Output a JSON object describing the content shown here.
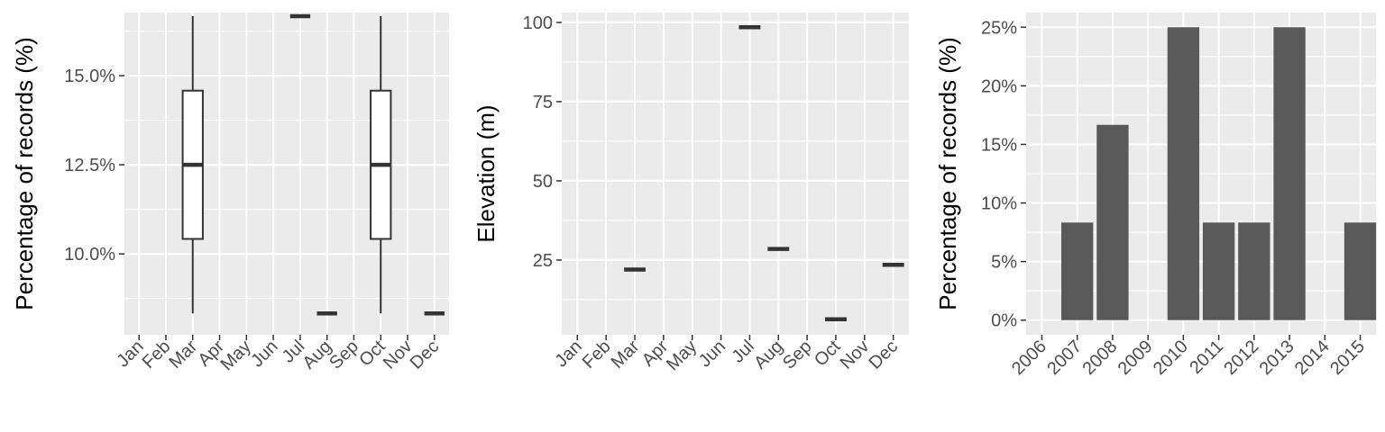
{
  "chart_data": [
    {
      "type": "boxplot",
      "ylabel": "Percentage of records (%)",
      "xlabel": "",
      "categories": [
        "Jan",
        "Feb",
        "Mar",
        "Apr",
        "May",
        "Jun",
        "Jul",
        "Aug",
        "Sep",
        "Oct",
        "Nov",
        "Dec"
      ],
      "y_ticks": [
        {
          "value": 0.1,
          "label": "10.0%"
        },
        {
          "value": 0.125,
          "label": "12.5%"
        },
        {
          "value": 0.15,
          "label": "15.0%"
        }
      ],
      "ylim": [
        0.0773,
        0.1677
      ],
      "boxes": [
        {
          "category": "Mar",
          "min": 0.0833,
          "q1": 0.1042,
          "median": 0.125,
          "q3": 0.1458,
          "max": 0.1667
        },
        {
          "category": "Jul",
          "min": 0.1667,
          "q1": 0.1667,
          "median": 0.1667,
          "q3": 0.1667,
          "max": 0.1667
        },
        {
          "category": "Aug",
          "min": 0.0833,
          "q1": 0.0833,
          "median": 0.0833,
          "q3": 0.0833,
          "max": 0.0833
        },
        {
          "category": "Oct",
          "min": 0.0833,
          "q1": 0.1042,
          "median": 0.125,
          "q3": 0.1458,
          "max": 0.1667
        },
        {
          "category": "Dec",
          "min": 0.0833,
          "q1": 0.0833,
          "median": 0.0833,
          "q3": 0.0833,
          "max": 0.0833
        }
      ],
      "grid": true
    },
    {
      "type": "boxplot",
      "ylabel": "Elevation (m)",
      "xlabel": "",
      "categories": [
        "Jan",
        "Feb",
        "Mar",
        "Apr",
        "May",
        "Jun",
        "Jul",
        "Aug",
        "Sep",
        "Oct",
        "Nov",
        "Dec"
      ],
      "y_ticks": [
        {
          "value": 25,
          "label": "25"
        },
        {
          "value": 50,
          "label": "50"
        },
        {
          "value": 75,
          "label": "75"
        },
        {
          "value": 100,
          "label": "100"
        }
      ],
      "ylim": [
        1.4,
        103.1
      ],
      "boxes": [
        {
          "category": "Mar",
          "min": 22,
          "q1": 22,
          "median": 22,
          "q3": 22,
          "max": 22
        },
        {
          "category": "Jul",
          "min": 98.5,
          "q1": 98.5,
          "median": 98.5,
          "q3": 98.5,
          "max": 98.5
        },
        {
          "category": "Aug",
          "min": 28.5,
          "q1": 28.5,
          "median": 28.5,
          "q3": 28.5,
          "max": 28.5
        },
        {
          "category": "Oct",
          "min": 6.3,
          "q1": 6.3,
          "median": 6.3,
          "q3": 6.3,
          "max": 6.3
        },
        {
          "category": "Dec",
          "min": 23.5,
          "q1": 23.5,
          "median": 23.5,
          "q3": 23.5,
          "max": 23.5
        }
      ],
      "grid": true
    },
    {
      "type": "bar",
      "ylabel": "Percentage of records (%)",
      "xlabel": "",
      "categories": [
        "2006",
        "2007",
        "2008",
        "2009",
        "2010",
        "2011",
        "2012",
        "2013",
        "2014",
        "2015"
      ],
      "values": [
        0,
        0.0833,
        0.1667,
        0,
        0.25,
        0.0833,
        0.0833,
        0.25,
        0,
        0.0833
      ],
      "y_ticks": [
        {
          "value": 0,
          "label": "0%"
        },
        {
          "value": 0.05,
          "label": "5%"
        },
        {
          "value": 0.1,
          "label": "10%"
        },
        {
          "value": 0.15,
          "label": "15%"
        },
        {
          "value": 0.2,
          "label": "20%"
        },
        {
          "value": 0.25,
          "label": "25%"
        }
      ],
      "ylim": [
        -0.0125,
        0.2625
      ],
      "bar_color": "#595959",
      "grid": true
    }
  ]
}
